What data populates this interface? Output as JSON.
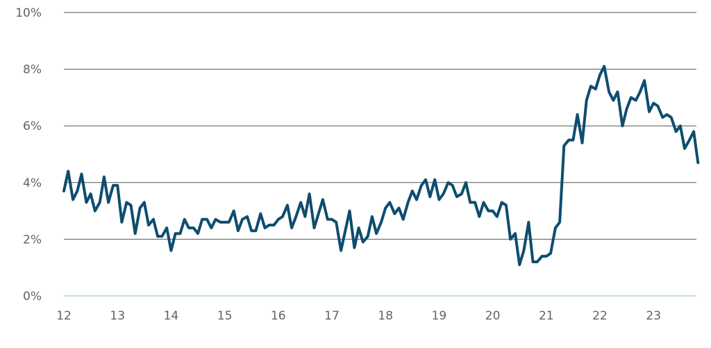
{
  "chart_data": {
    "type": "line",
    "title": "",
    "xlabel": "",
    "ylabel": "",
    "x_tick_labels": [
      "12",
      "13",
      "14",
      "15",
      "16",
      "17",
      "18",
      "19",
      "20",
      "21",
      "22",
      "23"
    ],
    "y_tick_labels": [
      "0%",
      "2%",
      "4%",
      "6%",
      "8%",
      "10%"
    ],
    "y_ticks": [
      0,
      2,
      4,
      6,
      8,
      10
    ],
    "xlim": [
      0,
      11.9
    ],
    "ylim": [
      0,
      10
    ],
    "grid": true,
    "legend": "none",
    "colors": {
      "series": "#0e4d6e",
      "grid": "#555555",
      "baseline": "#9fc8dc",
      "tick_text": "#5f6368"
    },
    "series": [
      {
        "name": "",
        "x": [
          0,
          0.08,
          0.17,
          0.25,
          0.33,
          0.42,
          0.5,
          0.58,
          0.67,
          0.75,
          0.83,
          0.92,
          1,
          1.08,
          1.17,
          1.25,
          1.33,
          1.42,
          1.5,
          1.58,
          1.67,
          1.75,
          1.83,
          1.92,
          2,
          2.08,
          2.17,
          2.25,
          2.33,
          2.42,
          2.5,
          2.58,
          2.67,
          2.75,
          2.83,
          2.92,
          3,
          3.08,
          3.17,
          3.25,
          3.33,
          3.42,
          3.5,
          3.58,
          3.67,
          3.75,
          3.83,
          3.92,
          4,
          4.08,
          4.17,
          4.25,
          4.33,
          4.42,
          4.5,
          4.58,
          4.67,
          4.75,
          4.83,
          4.92,
          5,
          5.08,
          5.17,
          5.25,
          5.33,
          5.42,
          5.5,
          5.58,
          5.67,
          5.75,
          5.83,
          5.92,
          6,
          6.08,
          6.17,
          6.25,
          6.33,
          6.42,
          6.5,
          6.58,
          6.67,
          6.75,
          6.83,
          6.92,
          7,
          7.08,
          7.17,
          7.25,
          7.33,
          7.42,
          7.5,
          7.58,
          7.67,
          7.75,
          7.83,
          7.92,
          8,
          8.08,
          8.17,
          8.25,
          8.33,
          8.42,
          8.5,
          8.58,
          8.67,
          8.75,
          8.83,
          8.92,
          9,
          9.08,
          9.17,
          9.25,
          9.33,
          9.42,
          9.5,
          9.58,
          9.67,
          9.75,
          9.83,
          9.92,
          10,
          10.08,
          10.17,
          10.25,
          10.33,
          10.42,
          10.5,
          10.58,
          10.67,
          10.75,
          10.83,
          10.92,
          11,
          11.08,
          11.17,
          11.25,
          11.33,
          11.42,
          11.5,
          11.58,
          11.67,
          11.75,
          11.83
        ],
        "values": [
          3.7,
          4.4,
          3.4,
          3.7,
          4.3,
          3.3,
          3.6,
          3.0,
          3.3,
          4.2,
          3.3,
          3.9,
          3.9,
          2.6,
          3.3,
          3.2,
          2.2,
          3.1,
          3.3,
          2.5,
          2.7,
          2.1,
          2.1,
          2.4,
          1.6,
          2.2,
          2.2,
          2.7,
          2.4,
          2.4,
          2.2,
          2.7,
          2.7,
          2.4,
          2.7,
          2.6,
          2.6,
          2.6,
          3.0,
          2.3,
          2.7,
          2.8,
          2.3,
          2.3,
          2.9,
          2.4,
          2.5,
          2.5,
          2.7,
          2.8,
          3.2,
          2.4,
          2.8,
          3.3,
          2.8,
          3.6,
          2.4,
          2.9,
          3.4,
          2.7,
          2.7,
          2.6,
          1.6,
          2.3,
          3.0,
          1.7,
          2.4,
          1.9,
          2.1,
          2.8,
          2.2,
          2.6,
          3.1,
          3.3,
          2.9,
          3.1,
          2.7,
          3.3,
          3.7,
          3.4,
          3.9,
          4.1,
          3.5,
          4.1,
          3.4,
          3.6,
          4.0,
          3.9,
          3.5,
          3.6,
          4.0,
          3.3,
          3.3,
          2.8,
          3.3,
          3.0,
          3.0,
          2.8,
          3.3,
          3.2,
          2.0,
          2.2,
          1.1,
          1.6,
          2.6,
          1.2,
          1.2,
          1.4,
          1.4,
          1.5,
          2.4,
          2.6,
          5.3,
          5.5,
          5.5,
          6.4,
          5.4,
          6.9,
          7.4,
          7.3,
          7.8,
          8.1,
          7.2,
          6.9,
          7.2,
          6.0,
          6.6,
          7.0,
          6.9,
          7.2,
          7.6,
          6.5,
          6.8,
          6.7,
          6.3,
          6.4,
          6.3,
          5.8,
          6.0,
          5.2,
          5.5,
          5.8,
          4.7
        ]
      }
    ]
  }
}
